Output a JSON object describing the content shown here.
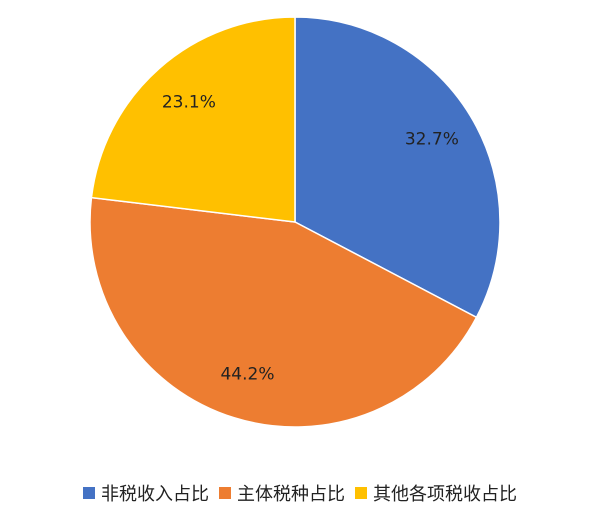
{
  "chart_data": {
    "type": "pie",
    "categories": [
      "非税收入占比",
      "主体税种占比",
      "其他各项税收占比"
    ],
    "values": [
      32.7,
      44.2,
      23.1
    ],
    "value_labels": [
      "32.7%",
      "44.2%",
      "23.1%"
    ],
    "colors": [
      "#4472c4",
      "#ed7d31",
      "#ffc000"
    ],
    "legend": "bottom"
  }
}
